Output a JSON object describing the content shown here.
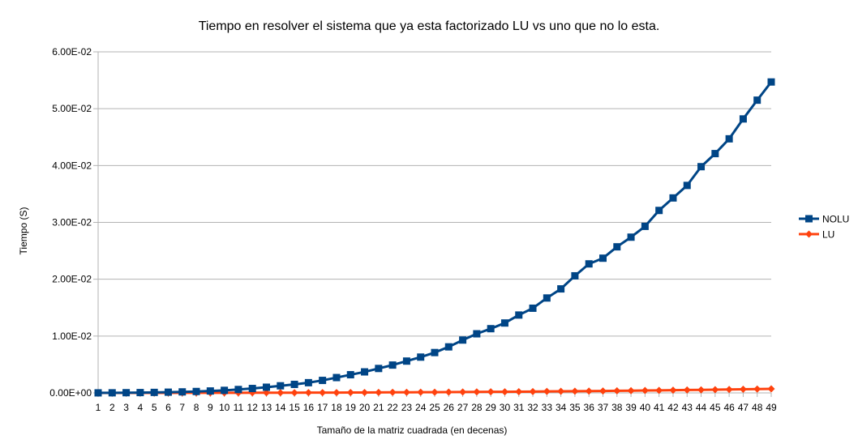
{
  "chart_data": {
    "type": "line",
    "title": "Tiempo en resolver el sistema que ya esta factorizado LU vs uno que no lo esta.",
    "xlabel": "Tamaño de la matriz cuadrada (en decenas)",
    "ylabel": "Tiempo (S)",
    "x": [
      1,
      2,
      3,
      4,
      5,
      6,
      7,
      8,
      9,
      10,
      11,
      12,
      13,
      14,
      15,
      16,
      17,
      18,
      19,
      20,
      21,
      22,
      23,
      24,
      25,
      26,
      27,
      28,
      29,
      30,
      31,
      32,
      33,
      34,
      35,
      36,
      37,
      38,
      39,
      40,
      41,
      42,
      43,
      44,
      45,
      46,
      47,
      48,
      49
    ],
    "y_ticks": [
      0,
      0.01,
      0.02,
      0.03,
      0.04,
      0.05,
      0.06
    ],
    "y_tick_labels": [
      "0.00E+00",
      "1.00E-02",
      "2.00E-02",
      "3.00E-02",
      "4.00E-02",
      "5.00E-02",
      "6.00E-02"
    ],
    "ylim": [
      0,
      0.06
    ],
    "grid": "horizontal",
    "legend": "right",
    "series": [
      {
        "name": "NOLU",
        "color": "#004586",
        "marker": "square",
        "values": [
          1e-05,
          2e-05,
          4e-05,
          6e-05,
          9e-05,
          0.00013,
          0.00018,
          0.00025,
          0.00034,
          0.00045,
          0.0006,
          0.00078,
          0.001,
          0.00125,
          0.0015,
          0.0018,
          0.0022,
          0.0027,
          0.0032,
          0.0037,
          0.0043,
          0.0049,
          0.0056,
          0.0063,
          0.0071,
          0.0081,
          0.0093,
          0.0104,
          0.0113,
          0.0123,
          0.0137,
          0.0149,
          0.0167,
          0.0183,
          0.0206,
          0.0227,
          0.0237,
          0.0257,
          0.0274,
          0.0293,
          0.0321,
          0.0343,
          0.0365,
          0.0398,
          0.0421,
          0.0447,
          0.0482,
          0.0515,
          0.0547
        ]
      },
      {
        "name": "LU",
        "color": "#ff420e",
        "marker": "diamond",
        "values": [
          0.0,
          0.0,
          0.0,
          0.0,
          0.0,
          0.0,
          1e-05,
          1e-05,
          1e-05,
          2e-05,
          2e-05,
          3e-05,
          3e-05,
          4e-05,
          4e-05,
          5e-05,
          6e-05,
          6e-05,
          7e-05,
          8e-05,
          9e-05,
          0.0001,
          0.00011,
          0.00012,
          0.00013,
          0.00014,
          0.00016,
          0.00017,
          0.00019,
          0.0002,
          0.00022,
          0.00024,
          0.00026,
          0.00028,
          0.0003,
          0.00032,
          0.00034,
          0.00037,
          0.00039,
          0.00042,
          0.00045,
          0.00048,
          0.00051,
          0.00054,
          0.00057,
          0.00061,
          0.00064,
          0.00068,
          0.00072
        ]
      }
    ]
  }
}
